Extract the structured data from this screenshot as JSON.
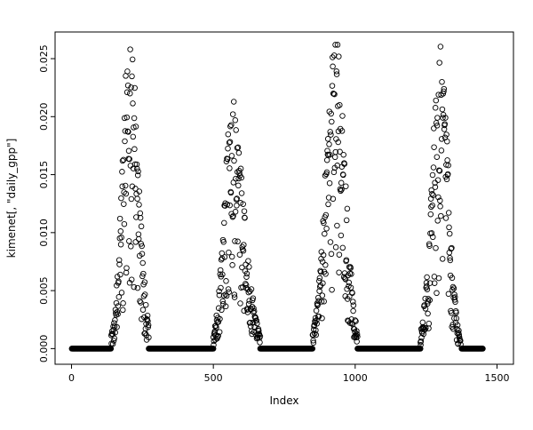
{
  "figure": {
    "background": "#ffffff",
    "foreground": "#000000"
  },
  "chart_data": {
    "type": "scatter",
    "title": "",
    "xlabel": "Index",
    "ylabel": "kimenet[, \"daily_gpp\"]",
    "xlim": [
      -58,
      1558
    ],
    "ylim": [
      -0.00135,
      0.0273
    ],
    "x_tick_values": [
      0,
      500,
      1000,
      1500
    ],
    "x_tick_labels": [
      "0",
      "500",
      "1000",
      "1500"
    ],
    "y_tick_values": [
      0,
      0.005,
      0.01,
      0.015,
      0.02,
      0.025
    ],
    "y_tick_labels": [
      "0.000",
      "0.005",
      "0.010",
      "0.015",
      "0.020",
      "0.025"
    ],
    "grid": false,
    "legend": null,
    "marker": {
      "shape": "open-circle",
      "radius_px": 2.8,
      "stroke": "#000000",
      "stroke_width": 0.9
    },
    "baseline_value": 0,
    "baseline_step": 1.5,
    "baseline_segments": [
      [
        1,
        140
      ],
      [
        272,
        500
      ],
      [
        665,
        850
      ],
      [
        1008,
        1230
      ],
      [
        1375,
        1450
      ]
    ],
    "seasons": [
      {
        "start": 140,
        "peak": 205,
        "end": 272,
        "peak_value": 0.0255,
        "rise_sigma": 26,
        "fall_sigma": 30
      },
      {
        "start": 500,
        "peak": 565,
        "end": 665,
        "peak_value": 0.0205,
        "rise_sigma": 27,
        "fall_sigma": 42
      },
      {
        "start": 850,
        "peak": 930,
        "end": 1008,
        "peak_value": 0.0255,
        "rise_sigma": 33,
        "fall_sigma": 33
      },
      {
        "start": 1230,
        "peak": 1300,
        "end": 1372,
        "peak_value": 0.0245,
        "rise_sigma": 29,
        "fall_sigma": 28
      }
    ],
    "noise_seed": 1234
  }
}
